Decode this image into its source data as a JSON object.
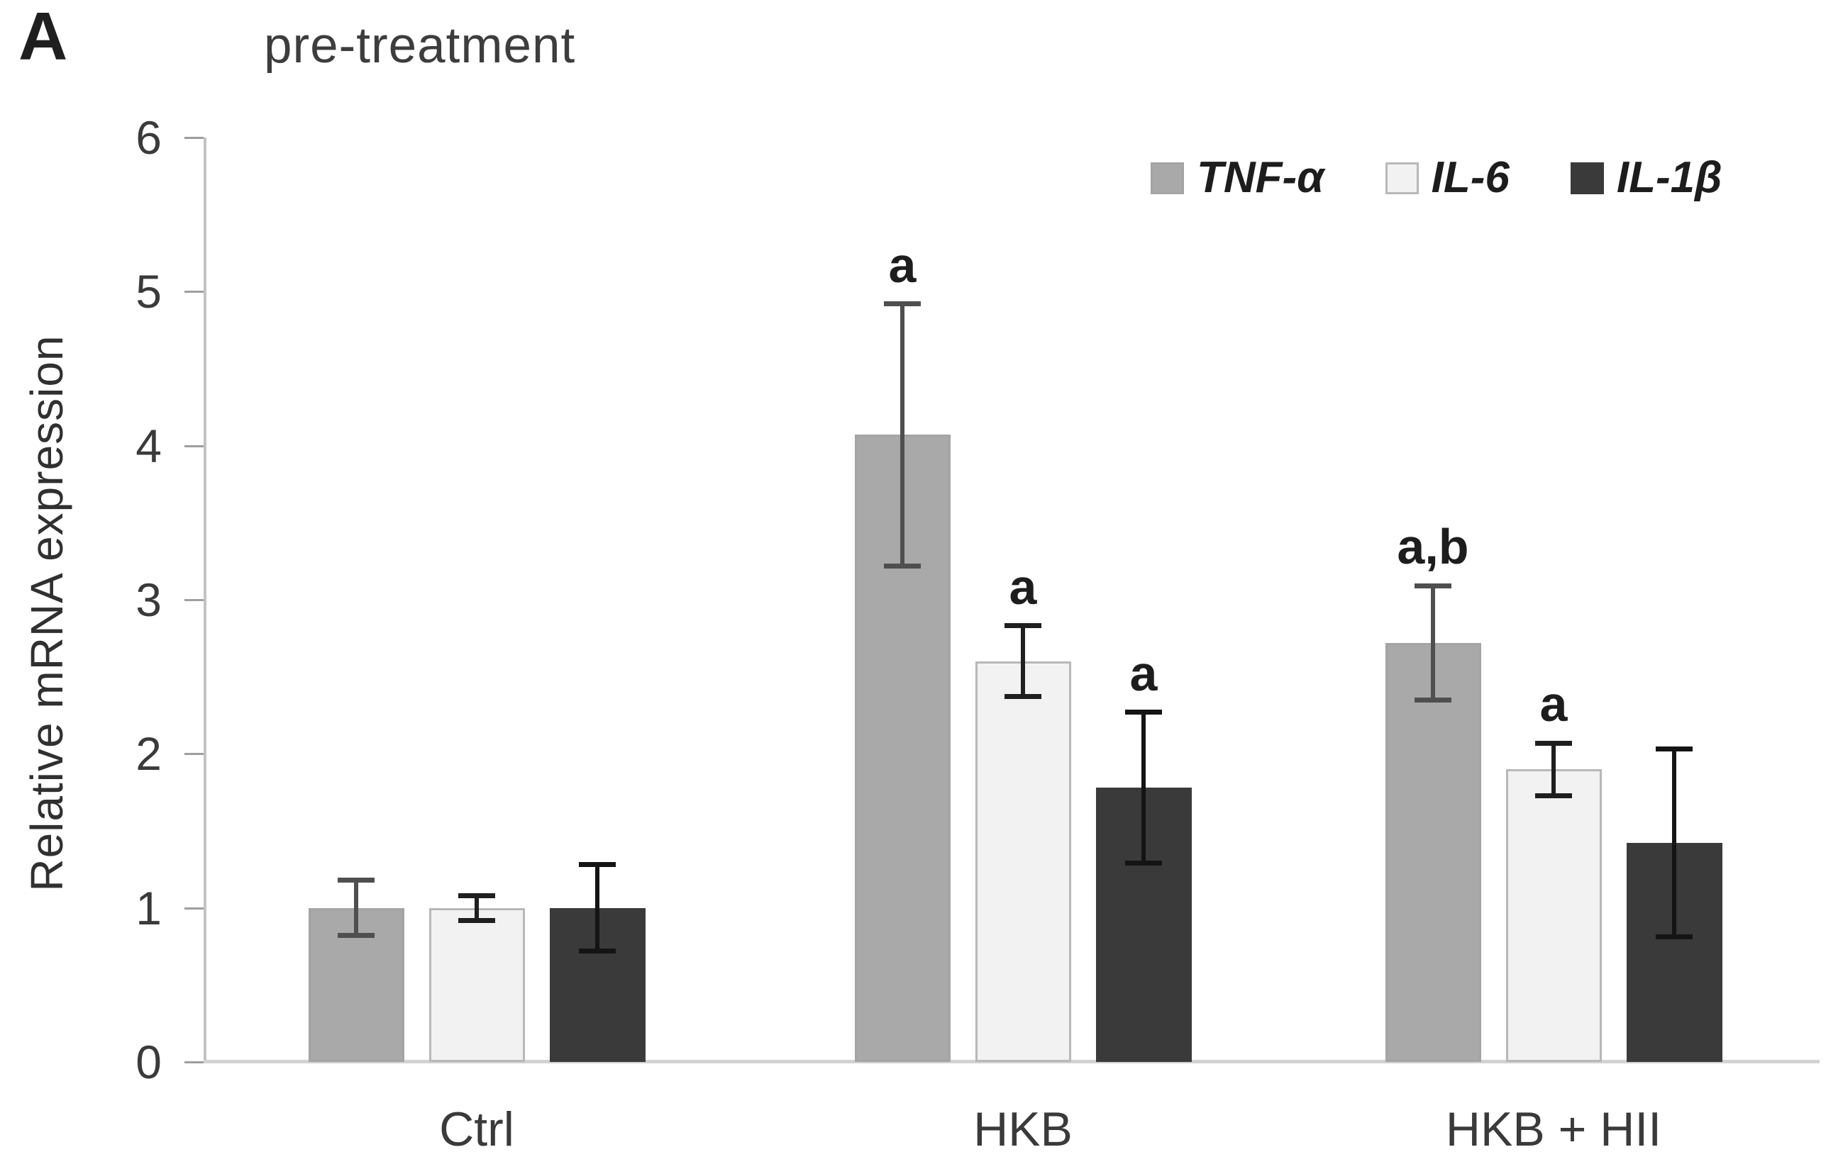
{
  "panel_label": "A",
  "title": "pre-treatment",
  "chart_data": {
    "type": "bar",
    "title": "pre-treatment",
    "xlabel": "",
    "ylabel": "Relative mRNA expression",
    "ylim": [
      0,
      6
    ],
    "yticks": [
      0,
      1,
      2,
      3,
      4,
      5,
      6
    ],
    "grid": false,
    "legend_position": "top-right",
    "categories": [
      "Ctrl",
      "HKB",
      "HKB + HII"
    ],
    "series": [
      {
        "name": "TNF-α",
        "fill": "#a9a9a9",
        "border": "#a4a4a4",
        "error_color": "#4f4f4f",
        "values": [
          1.0,
          4.07,
          2.72
        ],
        "errors": [
          0.18,
          0.85,
          0.37
        ],
        "annotations": [
          "",
          "a",
          "a,b"
        ]
      },
      {
        "name": "IL-6",
        "fill": "#f2f2f2",
        "border": "#b8b8b8",
        "error_color": "#1f1f1f",
        "values": [
          1.0,
          2.6,
          1.9
        ],
        "errors": [
          0.08,
          0.23,
          0.17
        ],
        "annotations": [
          "",
          "a",
          "a"
        ]
      },
      {
        "name": "IL-1β",
        "fill": "#3a3a3a",
        "border": "#3a3a3a",
        "error_color": "#141414",
        "values": [
          1.0,
          1.78,
          1.42
        ],
        "errors": [
          0.28,
          0.49,
          0.61
        ],
        "annotations": [
          "",
          "a",
          ""
        ]
      }
    ]
  }
}
